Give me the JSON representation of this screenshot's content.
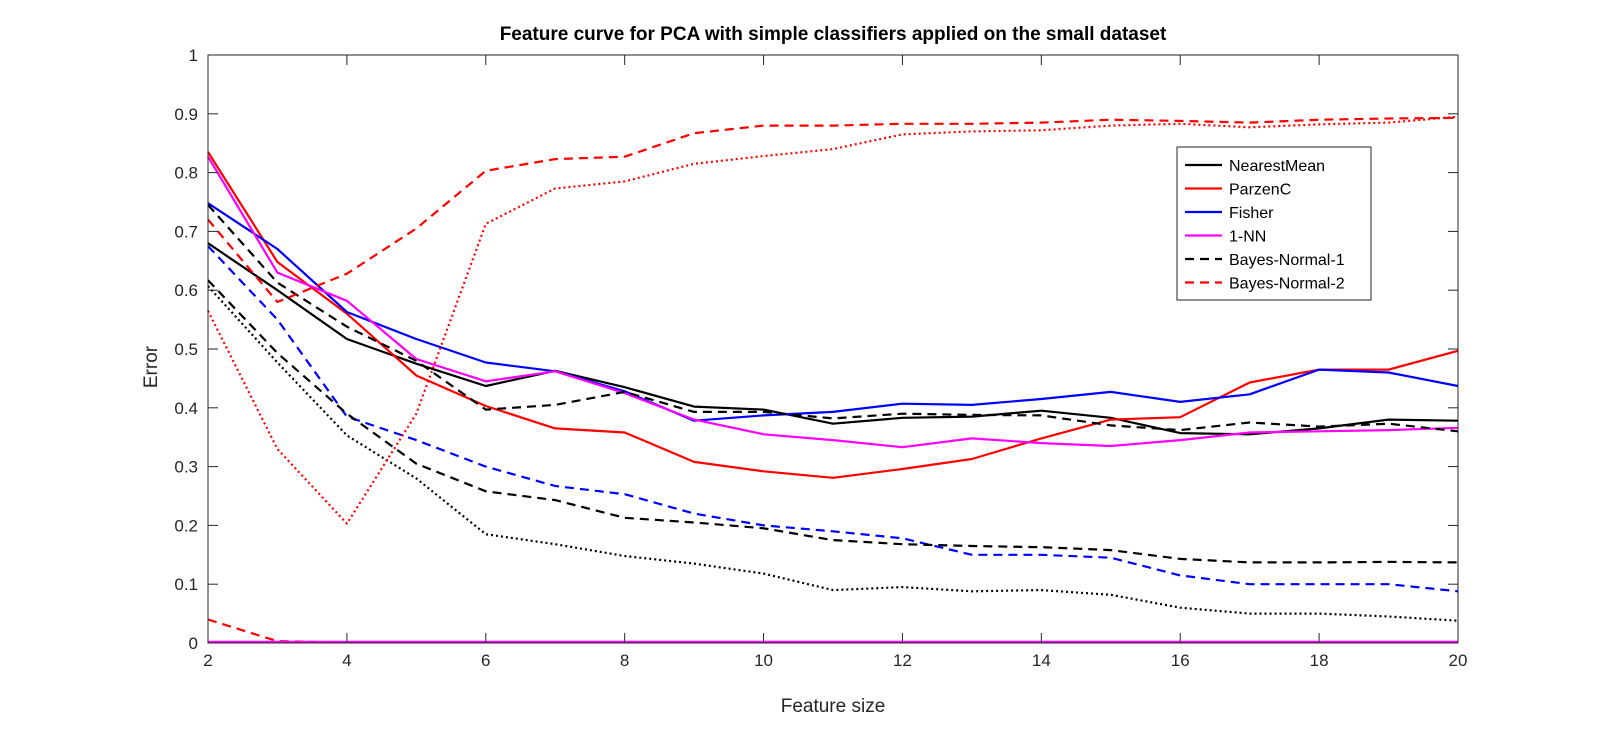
{
  "chart_data": {
    "type": "line",
    "title": "Feature curve for PCA with simple classifiers applied on the small dataset",
    "xlabel": "Feature size",
    "ylabel": "Error",
    "xlim": [
      2,
      20
    ],
    "ylim": [
      0,
      1
    ],
    "xticks": [
      2,
      4,
      6,
      8,
      10,
      12,
      14,
      16,
      18,
      20
    ],
    "yticks": [
      0,
      0.1,
      0.2,
      0.3,
      0.4,
      0.5,
      0.6,
      0.7,
      0.8,
      0.9,
      1
    ],
    "grid": false,
    "legend_position": "top-right",
    "x": [
      2,
      3,
      4,
      5,
      6,
      7,
      8,
      9,
      10,
      11,
      12,
      13,
      14,
      15,
      16,
      17,
      18,
      19,
      20
    ],
    "series": [
      {
        "name": "NearestMean",
        "color": "#000000",
        "style": "solid",
        "in_legend": true,
        "values": [
          0.68,
          0.6,
          0.517,
          0.475,
          0.437,
          0.463,
          0.435,
          0.402,
          0.397,
          0.373,
          0.383,
          0.385,
          0.395,
          0.383,
          0.357,
          0.355,
          0.365,
          0.38,
          0.378
        ]
      },
      {
        "name": "ParzenC",
        "color": "#ff0000",
        "style": "solid",
        "in_legend": true,
        "values": [
          0.835,
          0.648,
          0.56,
          0.455,
          0.403,
          0.365,
          0.358,
          0.308,
          0.292,
          0.281,
          0.296,
          0.313,
          0.348,
          0.38,
          0.384,
          0.443,
          0.465,
          0.465,
          0.497
        ]
      },
      {
        "name": "Fisher",
        "color": "#0000ff",
        "style": "solid",
        "in_legend": true,
        "values": [
          0.748,
          0.67,
          0.563,
          0.517,
          0.477,
          0.462,
          0.428,
          0.378,
          0.387,
          0.393,
          0.407,
          0.405,
          0.415,
          0.427,
          0.41,
          0.423,
          0.465,
          0.46,
          0.437
        ]
      },
      {
        "name": "1-NN",
        "color": "#ff00ff",
        "style": "solid",
        "in_legend": true,
        "values": [
          0.827,
          0.63,
          0.582,
          0.483,
          0.445,
          0.462,
          0.425,
          0.38,
          0.355,
          0.345,
          0.333,
          0.348,
          0.34,
          0.335,
          0.345,
          0.358,
          0.36,
          0.362,
          0.366
        ]
      },
      {
        "name": "Bayes-Normal-1",
        "color": "#000000",
        "style": "dashed",
        "in_legend": true,
        "values": [
          0.745,
          0.613,
          0.538,
          0.48,
          0.397,
          0.405,
          0.427,
          0.393,
          0.393,
          0.382,
          0.39,
          0.388,
          0.387,
          0.37,
          0.362,
          0.375,
          0.368,
          0.373,
          0.36
        ]
      },
      {
        "name": "Bayes-Normal-2",
        "color": "#ff0000",
        "style": "dashed",
        "in_legend": true,
        "values": [
          0.72,
          0.58,
          0.628,
          0.705,
          0.803,
          0.823,
          0.827,
          0.867,
          0.88,
          0.88,
          0.883,
          0.883,
          0.885,
          0.89,
          0.888,
          0.885,
          0.89,
          0.892,
          0.893
        ]
      },
      {
        "name": "",
        "color": "#0000ff",
        "style": "dashed",
        "in_legend": false,
        "values": [
          0.675,
          0.55,
          0.385,
          0.345,
          0.3,
          0.267,
          0.253,
          0.22,
          0.2,
          0.19,
          0.178,
          0.15,
          0.15,
          0.145,
          0.115,
          0.1,
          0.1,
          0.1,
          0.088
        ]
      },
      {
        "name": "",
        "color": "#000000",
        "style": "dashed",
        "in_legend": false,
        "values": [
          0.617,
          0.493,
          0.39,
          0.305,
          0.258,
          0.243,
          0.213,
          0.205,
          0.195,
          0.175,
          0.168,
          0.165,
          0.163,
          0.158,
          0.143,
          0.137,
          0.137,
          0.138,
          0.137
        ]
      },
      {
        "name": "",
        "color": "#000000",
        "style": "dotted",
        "in_legend": false,
        "values": [
          0.607,
          0.477,
          0.353,
          0.28,
          0.185,
          0.168,
          0.148,
          0.135,
          0.118,
          0.09,
          0.095,
          0.088,
          0.09,
          0.082,
          0.06,
          0.05,
          0.05,
          0.045,
          0.038
        ]
      },
      {
        "name": "",
        "color": "#ff0000",
        "style": "dotted",
        "in_legend": false,
        "values": [
          0.565,
          0.33,
          0.203,
          0.39,
          0.713,
          0.773,
          0.785,
          0.815,
          0.828,
          0.84,
          0.865,
          0.87,
          0.872,
          0.88,
          0.883,
          0.877,
          0.882,
          0.885,
          0.895
        ]
      },
      {
        "name": "",
        "color": "#ff0000",
        "style": "dashed",
        "in_legend": false,
        "values": [
          0.04,
          0.003,
          0.001,
          0.001,
          0.001,
          0.001,
          0.001,
          0.001,
          0.001,
          0.001,
          0.001,
          0.001,
          0.001,
          0.001,
          0.001,
          0.001,
          0.001,
          0.001,
          0.001
        ]
      },
      {
        "name": "",
        "color": "#ff00ff",
        "style": "solid",
        "in_legend": false,
        "values": [
          0.002,
          0.002,
          0.002,
          0.002,
          0.002,
          0.002,
          0.002,
          0.002,
          0.002,
          0.002,
          0.002,
          0.002,
          0.002,
          0.002,
          0.002,
          0.002,
          0.002,
          0.002,
          0.002
        ]
      }
    ]
  }
}
